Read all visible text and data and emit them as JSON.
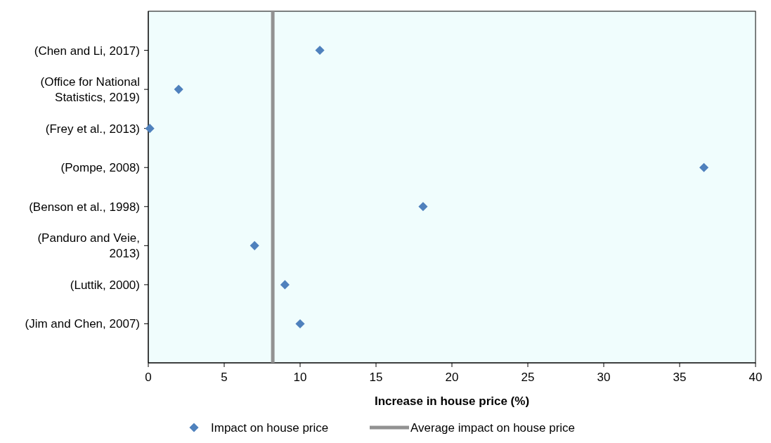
{
  "chart_data": {
    "type": "scatter",
    "orientation": "horizontal",
    "categories": [
      "(Chen and Li, 2017)",
      "(Office for National Statistics, 2019)",
      "(Frey et al., 2013)",
      "(Pompe, 2008)",
      "(Benson et al., 1998)",
      "(Panduro and Veie, 2013)",
      "(Luttik, 2000)",
      "(Jim and Chen, 2007)"
    ],
    "series": [
      {
        "name": "Impact on house price",
        "color": "#4f81bd",
        "values": [
          11.3,
          2.0,
          0.1,
          36.6,
          18.1,
          7.0,
          9.0,
          10.0
        ]
      }
    ],
    "xlabel": "Increase in house price (%)",
    "xlim": [
      0,
      40
    ],
    "xticks": [
      0,
      5,
      10,
      15,
      20,
      25,
      30,
      35,
      40
    ],
    "ref_lines": [
      {
        "axis": "x",
        "value": 8.2,
        "label": "Average impact on house price",
        "color": "#929292",
        "line_style": "solid"
      }
    ],
    "marker": "diamond",
    "grid": false,
    "legend": "bottom"
  }
}
